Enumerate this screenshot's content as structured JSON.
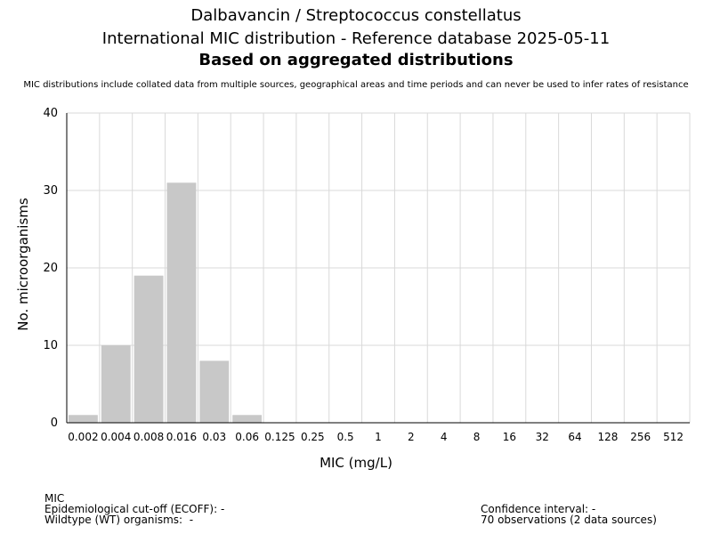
{
  "chart_data": {
    "type": "bar",
    "title": "Dalbavancin / Streptococcus constellatus",
    "subtitle": "International MIC distribution - Reference database 2025-05-11",
    "subtitle2": "Based on aggregated distributions",
    "note": "MIC distributions include collated data from multiple sources, geographical areas and time periods and can never be used to infer rates of resistance",
    "xlabel": "MIC (mg/L)",
    "ylabel": "No. microorganisms",
    "categories": [
      "0.002",
      "0.004",
      "0.008",
      "0.016",
      "0.03",
      "0.06",
      "0.125",
      "0.25",
      "0.5",
      "1",
      "2",
      "4",
      "8",
      "16",
      "32",
      "64",
      "128",
      "256",
      "512"
    ],
    "values": [
      1,
      10,
      19,
      31,
      8,
      1,
      0,
      0,
      0,
      0,
      0,
      0,
      0,
      0,
      0,
      0,
      0,
      0,
      0
    ],
    "ylim": [
      0,
      40
    ],
    "yticks": [
      0,
      10,
      20,
      30,
      40
    ],
    "grid": true,
    "bar_color": "#c8c8c8"
  },
  "footer": {
    "mic_label": "MIC",
    "ecoff": "Epidemiological cut-off (ECOFF): -",
    "wildtype": "Wildtype (WT) organisms:  -",
    "confidence": "Confidence interval: -",
    "observations": "70 observations (2 data sources)"
  }
}
